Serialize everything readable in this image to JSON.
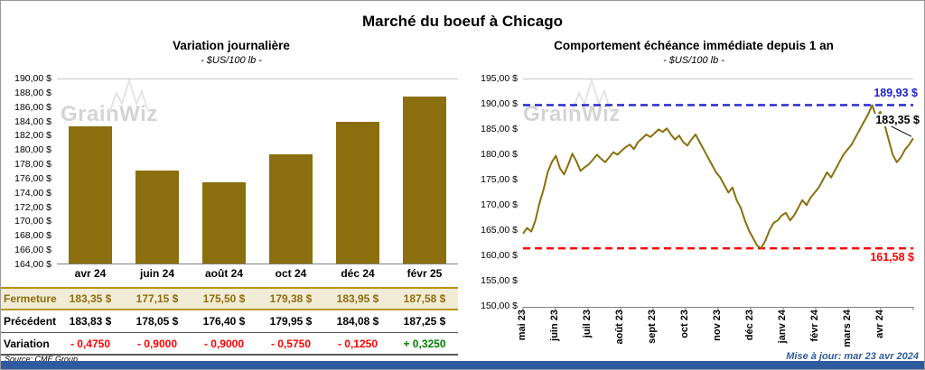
{
  "page": {
    "title": "Marché du boeuf à Chicago",
    "source": "Source: CME Group",
    "updated": "Mise à jour: mar 23 avr 2024",
    "watermark": "GrainWiz"
  },
  "left_panel": {
    "title": "Variation journalière",
    "subtitle": "- $US/100 lb -"
  },
  "right_panel": {
    "title": "Comportement échéance immédiate depuis 1 an",
    "subtitle": "- $US/100 lb -",
    "annotations": {
      "high": "189,93 $",
      "last": "183,35 $",
      "low": "161,58 $"
    }
  },
  "table": {
    "rows": [
      {
        "style": "close",
        "label": "Fermeture",
        "values": [
          "183,35 $",
          "177,15 $",
          "175,50 $",
          "179,38 $",
          "183,95 $",
          "187,58 $"
        ]
      },
      {
        "style": "previous",
        "label": "Précédent",
        "values": [
          "183,83 $",
          "178,05 $",
          "176,40 $",
          "179,95 $",
          "184,08 $",
          "187,25 $"
        ]
      },
      {
        "style": "variation",
        "label": "Variation",
        "values": [
          "- 0,4750",
          "- 0,9000",
          "- 0,9000",
          "- 0,5750",
          "- 0,1250",
          "+ 0,3250"
        ],
        "signs": [
          "neg",
          "neg",
          "neg",
          "neg",
          "neg",
          "pos"
        ]
      }
    ]
  },
  "chart_data": [
    {
      "type": "bar",
      "title": "Variation journalière",
      "subtitle": "- $US/100 lb -",
      "categories": [
        "avr 24",
        "juin 24",
        "août 24",
        "oct 24",
        "déc 24",
        "févr 25"
      ],
      "values": [
        183.35,
        177.15,
        175.5,
        179.38,
        183.95,
        187.58
      ],
      "ylim": [
        164,
        190
      ],
      "ytick_step": 2,
      "ytick_labels": [
        "190,00 $",
        "188,00 $",
        "186,00 $",
        "184,00 $",
        "182,00 $",
        "180,00 $",
        "178,00 $",
        "176,00 $",
        "174,00 $",
        "172,00 $",
        "170,00 $",
        "168,00 $",
        "166,00 $",
        "164,00 $"
      ],
      "bar_color": "#8B6F0E",
      "grid": false
    },
    {
      "type": "line",
      "title": "Comportement échéance immédiate depuis 1 an",
      "subtitle": "- $US/100 lb -",
      "x_labels": [
        "mai 23",
        "juin 23",
        "juil 23",
        "août 23",
        "sept 23",
        "oct 23",
        "nov 23",
        "déc 23",
        "janv 24",
        "févr 24",
        "mars 24",
        "avr 24"
      ],
      "ylim": [
        150,
        195
      ],
      "ytick_step": 5,
      "ytick_labels": [
        "195,00 $",
        "190,00 $",
        "185,00 $",
        "180,00 $",
        "175,00 $",
        "170,00 $",
        "165,00 $",
        "160,00 $",
        "155,00 $",
        "150,00 $"
      ],
      "line_color": "#8B6F0E",
      "reference_lines": [
        {
          "value": 189.93,
          "color": "#2222CC",
          "style": "dashed",
          "label": "189,93 $"
        },
        {
          "value": 161.58,
          "color": "#FF0000",
          "style": "dashed",
          "label": "161,58 $"
        }
      ],
      "last_value": 183.35,
      "values": [
        164.5,
        165.6,
        164.9,
        167.0,
        170.5,
        173.2,
        176.6,
        178.6,
        179.9,
        177.4,
        176.2,
        178.1,
        180.3,
        178.8,
        176.9,
        177.6,
        178.2,
        179.1,
        180.1,
        179.3,
        178.6,
        179.6,
        180.6,
        180.1,
        180.9,
        181.6,
        182.1,
        181.2,
        182.6,
        183.3,
        184.1,
        183.6,
        184.3,
        185.1,
        184.6,
        185.3,
        184.1,
        183.1,
        183.9,
        182.6,
        181.9,
        183.1,
        184.1,
        182.6,
        181.1,
        179.6,
        178.1,
        176.6,
        175.6,
        174.1,
        172.6,
        173.6,
        171.1,
        169.6,
        167.1,
        165.1,
        163.6,
        162.1,
        161.6,
        163.1,
        165.1,
        166.6,
        167.1,
        168.1,
        168.6,
        167.1,
        168.1,
        169.6,
        171.1,
        170.1,
        171.6,
        172.6,
        173.6,
        175.1,
        176.6,
        175.6,
        177.1,
        178.6,
        180.1,
        181.1,
        182.1,
        183.6,
        185.1,
        186.6,
        188.1,
        189.9,
        187.6,
        188.6,
        186.1,
        183.1,
        180.1,
        178.6,
        179.6,
        181.1,
        182.1,
        183.35
      ]
    }
  ],
  "colors": {
    "gold": "#8B6F0E",
    "beige": "#F2EBD5",
    "gold_border": "#B8960C",
    "neg": "#FF0000",
    "pos": "#008000",
    "bottom_bar": "#2E5B9F",
    "update_text": "#2E5B9F"
  }
}
